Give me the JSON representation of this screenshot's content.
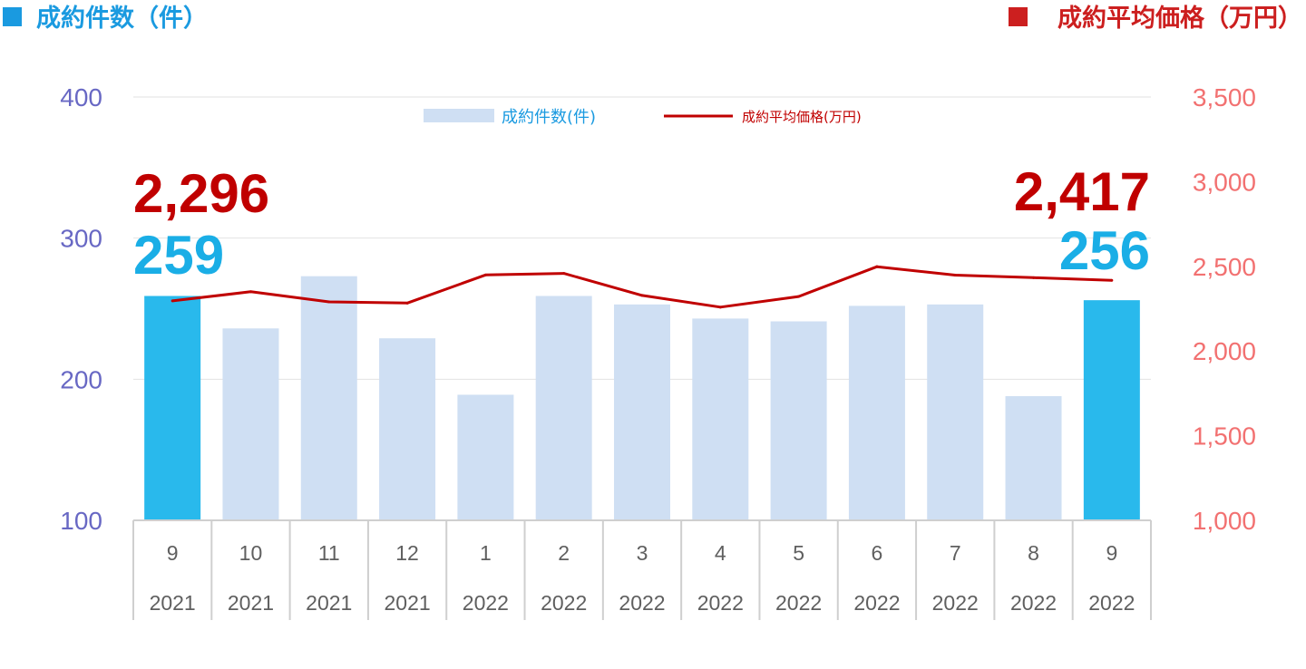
{
  "header": {
    "left_label": "成約件数（件）",
    "right_label": "成約平均価格（万円）"
  },
  "colors": {
    "left_axis": "#6868c4",
    "right_axis": "#f27171",
    "bar_light": "#cfdff3",
    "bar_highlight": "#29b9ec",
    "line": "#c00000",
    "header_left": "#1a9ae0",
    "header_right": "#cc1f1f",
    "big_count": "#1aaee6",
    "big_price": "#c00000",
    "grid": "#e2e2e2",
    "table_border": "#cfcfcf"
  },
  "chart_data": {
    "type": "bar",
    "categories": [
      {
        "month": "9",
        "year": "2021"
      },
      {
        "month": "10",
        "year": "2021"
      },
      {
        "month": "11",
        "year": "2021"
      },
      {
        "month": "12",
        "year": "2021"
      },
      {
        "month": "1",
        "year": "2022"
      },
      {
        "month": "2",
        "year": "2022"
      },
      {
        "month": "3",
        "year": "2022"
      },
      {
        "month": "4",
        "year": "2022"
      },
      {
        "month": "5",
        "year": "2022"
      },
      {
        "month": "6",
        "year": "2022"
      },
      {
        "month": "7",
        "year": "2022"
      },
      {
        "month": "8",
        "year": "2022"
      },
      {
        "month": "9",
        "year": "2022"
      }
    ],
    "series": [
      {
        "name": "成約件数(件)",
        "type": "bar",
        "axis": "left",
        "values": [
          259,
          236,
          273,
          229,
          189,
          259,
          253,
          243,
          241,
          252,
          253,
          188,
          256
        ],
        "highlight": [
          true,
          false,
          false,
          false,
          false,
          false,
          false,
          false,
          false,
          false,
          false,
          false,
          true
        ]
      },
      {
        "name": "成約平均価格(万円)",
        "type": "line",
        "axis": "right",
        "values": [
          2296,
          2350,
          2290,
          2283,
          2449,
          2458,
          2328,
          2259,
          2322,
          2498,
          2448,
          2433,
          2417
        ]
      }
    ],
    "y_left": {
      "min": 100,
      "max": 400,
      "ticks": [
        "100",
        "200",
        "300",
        "400"
      ]
    },
    "y_right": {
      "min": 1000,
      "max": 3500,
      "ticks": [
        "1,000",
        "1,500",
        "2,000",
        "2,500",
        "3,000",
        "3,500"
      ]
    },
    "callouts": {
      "first_price": "2,296",
      "first_count": "259",
      "last_price": "2,417",
      "last_count": "256"
    },
    "legend_position": "top-center",
    "grid": true
  }
}
